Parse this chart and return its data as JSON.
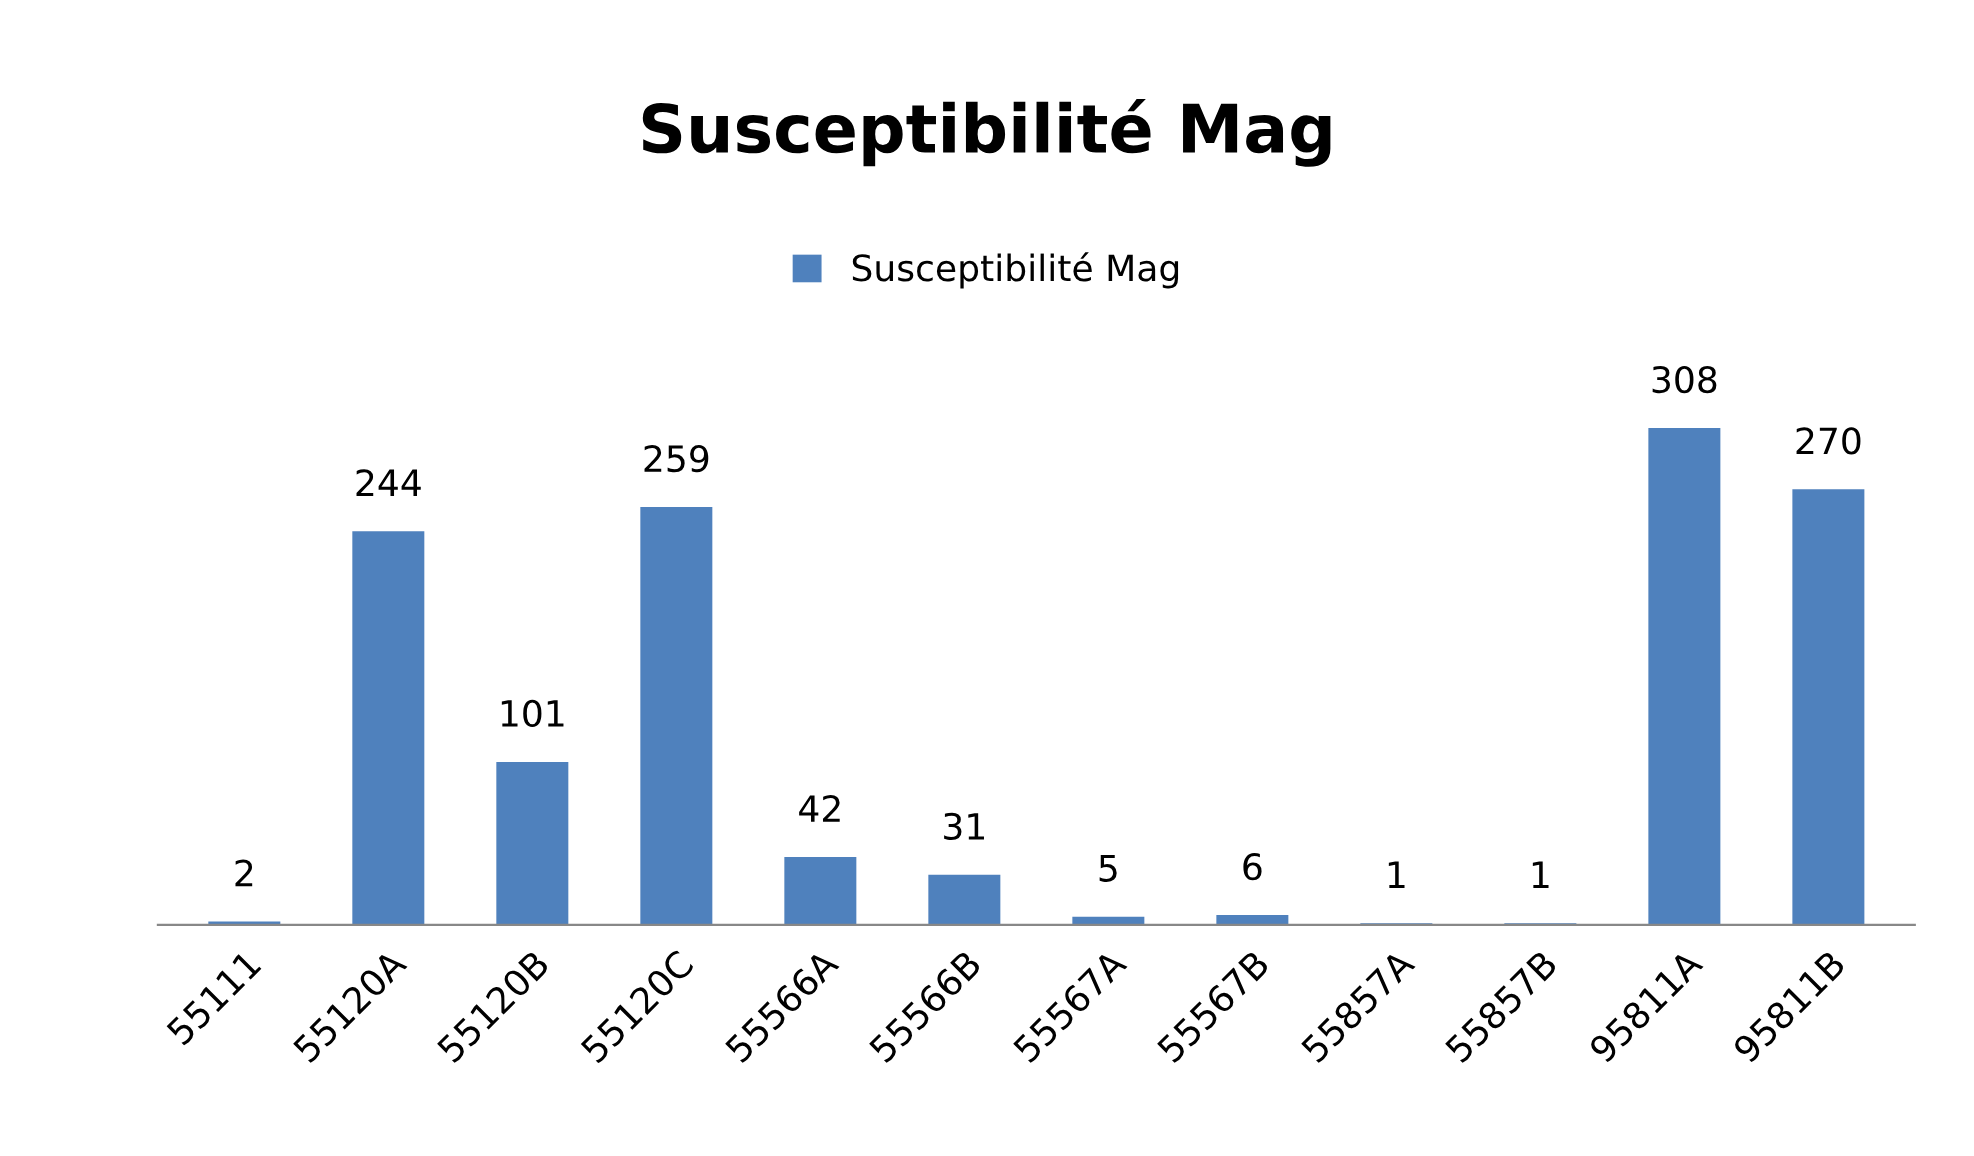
{
  "chart_data": {
    "type": "bar",
    "title": "Susceptibilité Mag",
    "categories": [
      "55111",
      "55120A",
      "55120B",
      "55120C",
      "55566A",
      "55566B",
      "55567A",
      "55567B",
      "55857A",
      "55857B",
      "95811A",
      "95811B"
    ],
    "series": [
      {
        "name": "Susceptibilité Mag",
        "color": "#4f81bd",
        "values": [
          2,
          244,
          101,
          259,
          42,
          31,
          5,
          6,
          1,
          1,
          308,
          270
        ]
      }
    ],
    "data_labels": true,
    "legend": "top",
    "grid": false,
    "tick_labels": "x"
  }
}
